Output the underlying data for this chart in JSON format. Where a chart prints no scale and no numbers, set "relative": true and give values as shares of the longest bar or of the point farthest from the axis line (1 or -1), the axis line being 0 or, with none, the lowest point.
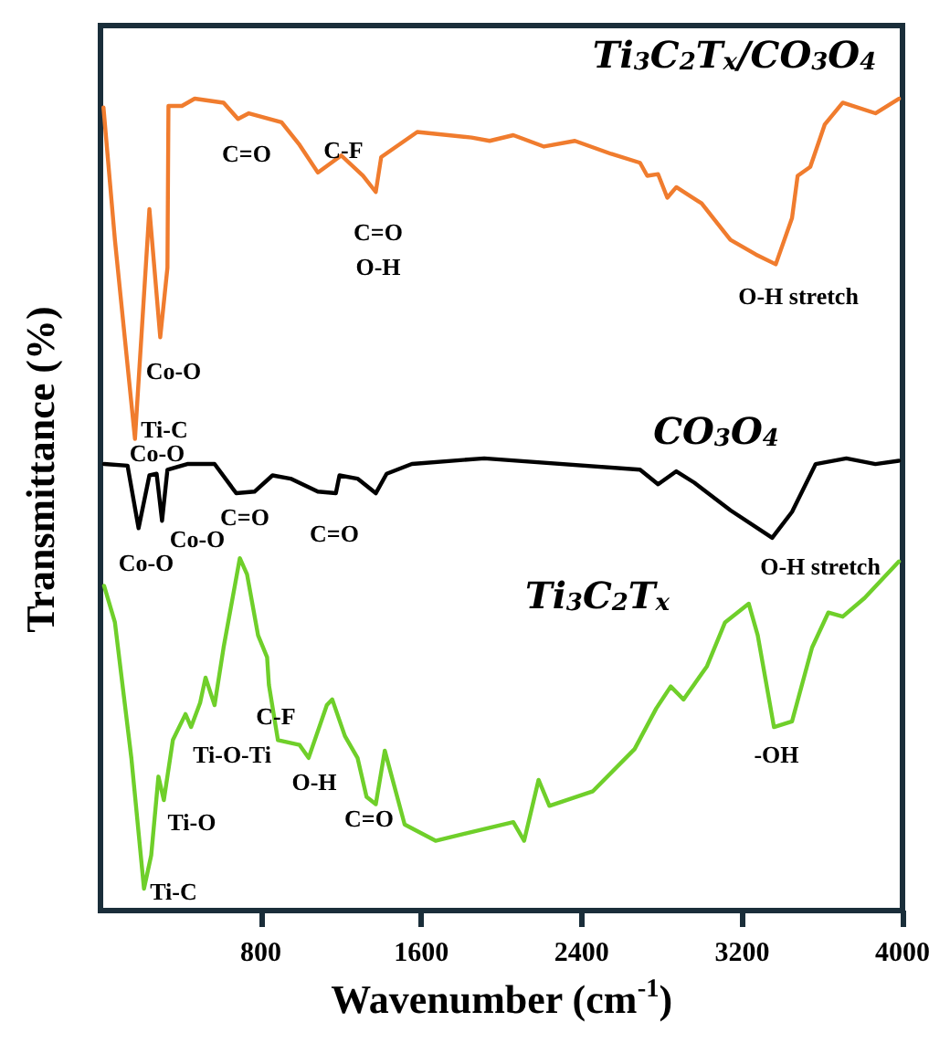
{
  "chart_data": {
    "type": "line",
    "relative": true,
    "xlabel": "Wavenumber (cm$^{-1}$)",
    "ylabel": "Transmittance (%)",
    "xlim": [
      0,
      4000
    ],
    "xticks": [
      800,
      1600,
      2400,
      3200,
      4000
    ],
    "grid": false,
    "legend": false,
    "marker": "none",
    "line_style": "solid",
    "series": [
      {
        "name": "Ti$_{3}$C$_{2}$T$_{x}$/CO$_{3}$O$_{4}$",
        "color": "#f07c2e",
        "x": [
          15,
          72,
          172,
          244,
          298,
          334,
          339,
          406,
          470,
          614,
          686,
          740,
          903,
          993,
          1084,
          1201,
          1309,
          1373,
          1400,
          1580,
          1851,
          1941,
          2059,
          2212,
          2366,
          2547,
          2691,
          2727,
          2781,
          2827,
          2872,
          2998,
          3142,
          3269,
          3368,
          3449,
          3477,
          3540,
          3612,
          3702,
          3865,
          3982
        ],
        "values": [
          0.989,
          0.826,
          0.581,
          0.864,
          0.706,
          0.792,
          0.991,
          0.991,
          1.0,
          0.995,
          0.975,
          0.982,
          0.971,
          0.943,
          0.909,
          0.93,
          0.905,
          0.885,
          0.928,
          0.959,
          0.952,
          0.948,
          0.955,
          0.941,
          0.948,
          0.932,
          0.921,
          0.905,
          0.907,
          0.878,
          0.891,
          0.871,
          0.826,
          0.808,
          0.796,
          0.853,
          0.905,
          0.916,
          0.968,
          0.995,
          0.982,
          1.0
        ]
      },
      {
        "name": "CO$_{3}$O$_{4}$",
        "color": "#000000",
        "x": [
          18,
          135,
          190,
          244,
          280,
          307,
          334,
          433,
          569,
          677,
          768,
          858,
          948,
          1084,
          1174,
          1192,
          1282,
          1373,
          1427,
          1553,
          1914,
          2691,
          2781,
          2872,
          2962,
          3142,
          3350,
          3449,
          3567,
          3720,
          3865,
          3982
        ],
        "values": [
          0.55,
          0.548,
          0.471,
          0.536,
          0.538,
          0.48,
          0.543,
          0.55,
          0.55,
          0.514,
          0.516,
          0.536,
          0.532,
          0.516,
          0.514,
          0.536,
          0.532,
          0.514,
          0.538,
          0.55,
          0.557,
          0.543,
          0.525,
          0.541,
          0.527,
          0.493,
          0.459,
          0.491,
          0.55,
          0.557,
          0.55,
          0.554
        ]
      },
      {
        "name": "Ti$_{3}$C$_{2}$T$_{x}$",
        "color": "#6fcf2a",
        "x": [
          18,
          72,
          154,
          217,
          253,
          289,
          316,
          361,
          424,
          452,
          497,
          524,
          569,
          614,
          695,
          731,
          786,
          831,
          840,
          885,
          993,
          1038,
          1129,
          1156,
          1219,
          1282,
          1327,
          1373,
          1418,
          1517,
          1671,
          2059,
          2113,
          2185,
          2239,
          2456,
          2664,
          2772,
          2844,
          2908,
          3025,
          3115,
          3233,
          3278,
          3359,
          3449,
          3549,
          3630,
          3702,
          3811,
          3982
        ],
        "values": [
          0.4,
          0.355,
          0.188,
          0.027,
          0.068,
          0.165,
          0.136,
          0.21,
          0.242,
          0.226,
          0.256,
          0.287,
          0.253,
          0.324,
          0.434,
          0.414,
          0.339,
          0.312,
          0.278,
          0.21,
          0.204,
          0.188,
          0.253,
          0.26,
          0.215,
          0.188,
          0.14,
          0.131,
          0.197,
          0.106,
          0.086,
          0.109,
          0.086,
          0.161,
          0.129,
          0.147,
          0.199,
          0.249,
          0.276,
          0.26,
          0.301,
          0.355,
          0.378,
          0.339,
          0.226,
          0.233,
          0.324,
          0.367,
          0.362,
          0.385,
          0.43
        ]
      }
    ],
    "annotations": [
      "C=O",
      "C-F",
      "C=O",
      "O-H",
      "O-H stretch",
      "Co-O",
      "Ti-C",
      "Co-O",
      "Co-O",
      "Co-O",
      "C=O",
      "C=O",
      "O-H stretch",
      "Ti-O",
      "Ti-C",
      "Ti-O-Ti",
      "C-F",
      "O-H",
      "C=O",
      "-OH"
    ]
  }
}
